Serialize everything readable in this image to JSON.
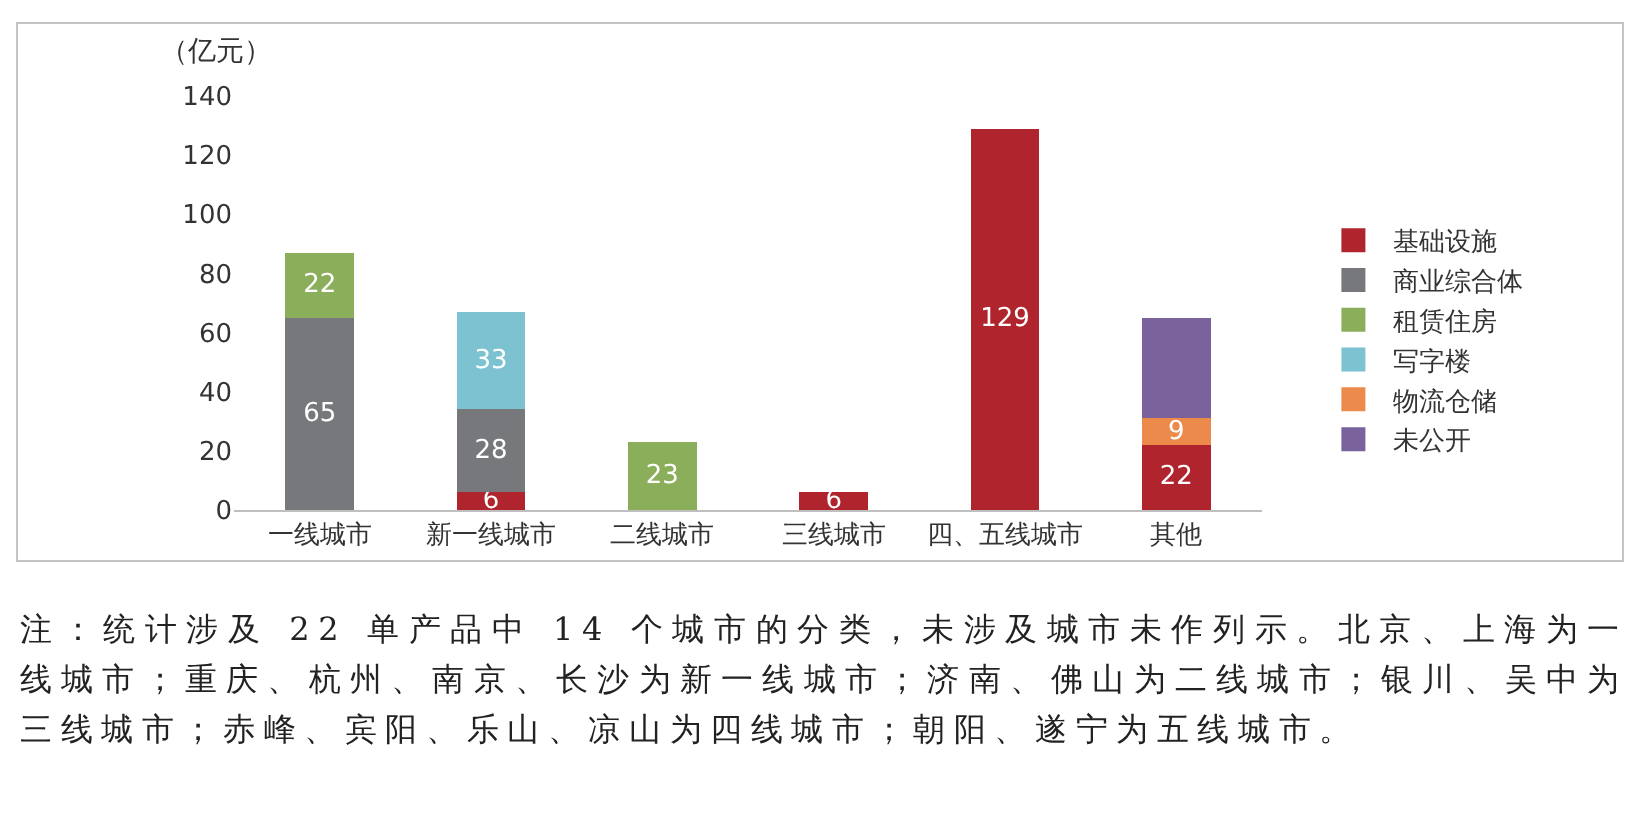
{
  "chart_data": {
    "type": "bar",
    "ylabel": "（亿元）",
    "categories": [
      "一线城市",
      "新一线城市",
      "二线城市",
      "三线城市",
      "四、五线城市",
      "其他"
    ],
    "stacked": true,
    "ylim": [
      0,
      140
    ],
    "yticks": [
      0,
      20,
      40,
      60,
      80,
      100,
      120,
      140
    ],
    "grid": false,
    "legend": "right",
    "series": [
      {
        "name": "基础设施",
        "color": "#b0242d",
        "values": [
          null,
          6,
          null,
          6,
          129,
          22
        ],
        "value_labels": [
          null,
          "6",
          null,
          "6",
          "129",
          "22"
        ]
      },
      {
        "name": "商业综合体",
        "color": "#77787b",
        "values": [
          65,
          28,
          null,
          null,
          null,
          null
        ],
        "value_labels": [
          "65",
          "28",
          null,
          null,
          null,
          null
        ]
      },
      {
        "name": "租赁住房",
        "color": "#8bae5b",
        "values": [
          22,
          null,
          23,
          null,
          null,
          null
        ],
        "value_labels": [
          "22",
          null,
          "23",
          null,
          null,
          null
        ]
      },
      {
        "name": "写字楼",
        "color": "#7dc2d1",
        "values": [
          null,
          33,
          null,
          null,
          null,
          null
        ],
        "value_labels": [
          null,
          "33",
          null,
          null,
          null,
          null
        ]
      },
      {
        "name": "物流仓储",
        "color": "#ec8a4b",
        "values": [
          null,
          null,
          null,
          null,
          null,
          9
        ],
        "value_labels": [
          null,
          null,
          null,
          null,
          null,
          "9"
        ]
      },
      {
        "name": "未公开",
        "color": "#7a629c",
        "values": [
          null,
          null,
          null,
          null,
          null,
          34
        ],
        "value_labels": [
          null,
          null,
          null,
          null,
          null,
          null
        ]
      }
    ],
    "annotations": [
      "注：统计涉及 22 单产品中 14 个城市的分类，未涉及城市未作列示。北京、上海为一线城市；重庆、杭州、南京、长沙为新一线城市；济南、佛山为二线城市；银川、吴中为三线城市；赤峰、宾阳、乐山、凉山为四线城市；朝阳、遂宁为五线城市。"
    ]
  }
}
